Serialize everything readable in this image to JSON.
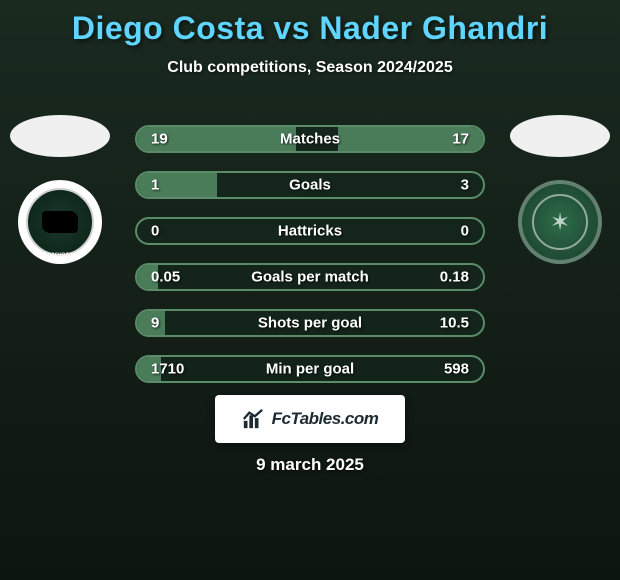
{
  "title": "Diego Costa vs Nader Ghandri",
  "subtitle": "Club competitions, Season 2024/2025",
  "brand_text": "FcTables.com",
  "date": "9 march 2025",
  "colors": {
    "title_color": "#5fd5ff",
    "bar_fill": "#4a7c5a",
    "bar_border": "#5a8c6a",
    "background_top": "#1a2a1f",
    "background_bottom": "#0d1510",
    "club_left_bg": "#ffffff",
    "club_right_bg": "#2d6b4a"
  },
  "stats": [
    {
      "label": "Matches",
      "left_value": "19",
      "right_value": "17",
      "left_pct": 46,
      "right_pct": 42
    },
    {
      "label": "Goals",
      "left_value": "1",
      "right_value": "3",
      "left_pct": 23,
      "right_pct": 0
    },
    {
      "label": "Hattricks",
      "left_value": "0",
      "right_value": "0",
      "left_pct": 0,
      "right_pct": 0
    },
    {
      "label": "Goals per match",
      "left_value": "0.05",
      "right_value": "0.18",
      "left_pct": 6,
      "right_pct": 0
    },
    {
      "label": "Shots per goal",
      "left_value": "9",
      "right_value": "10.5",
      "left_pct": 8,
      "right_pct": 0
    },
    {
      "label": "Min per goal",
      "left_value": "1710",
      "right_value": "598",
      "left_pct": 7,
      "right_pct": 0
    }
  ]
}
